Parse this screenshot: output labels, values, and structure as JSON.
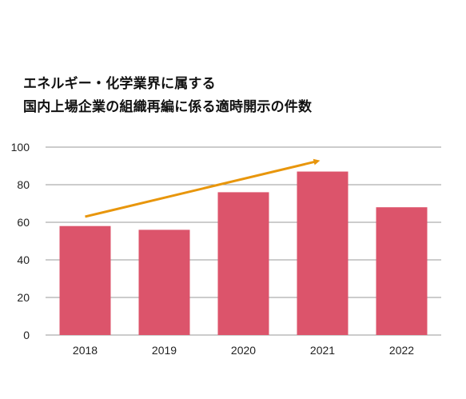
{
  "title": {
    "line1": "エネルギー・化学業界に属する",
    "line2": "国内上場企業の組織再編に係る適時開示の件数"
  },
  "colors": {
    "bar": "#dc546b",
    "arrow": "#e8960c",
    "grid": "#9a9a9a",
    "text": "#222222"
  },
  "chart_data": {
    "type": "bar",
    "title": "エネルギー・化学業界に属する国内上場企業の組織再編に係る適時開示の件数",
    "categories": [
      "2018",
      "2019",
      "2020",
      "2021",
      "2022"
    ],
    "values": [
      58,
      56,
      76,
      87,
      68
    ],
    "ylim": [
      0,
      100
    ],
    "yticks": [
      "0",
      "20",
      "40",
      "60",
      "80",
      "100"
    ],
    "xlabel": "",
    "ylabel": "",
    "grid": true,
    "legend": "none",
    "annotation": {
      "type": "trend-arrow",
      "from": {
        "x": "2018",
        "y": 63
      },
      "to": {
        "x": "2021",
        "y": 93
      }
    }
  }
}
